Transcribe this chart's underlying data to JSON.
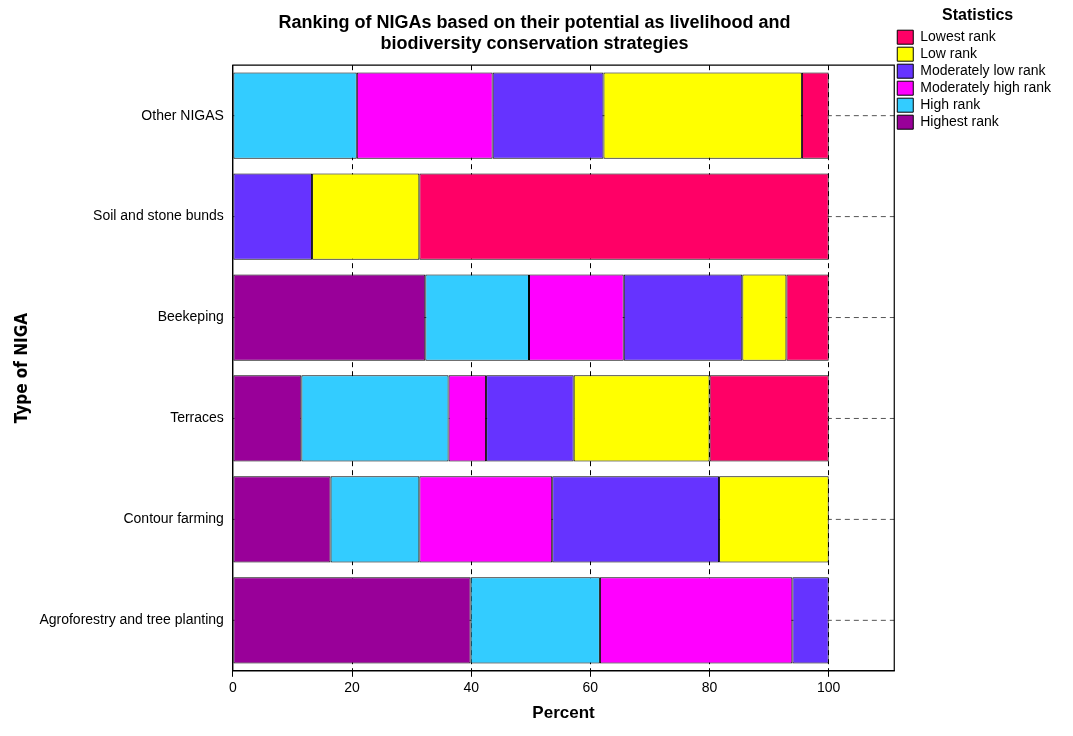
{
  "chart_data": {
    "type": "bar",
    "orientation": "horizontal",
    "stacked": true,
    "title": "Ranking of NIGAs based on their potential as livelihood and biodiversity conservation strategies",
    "xlabel": "Percent",
    "ylabel": "Type of NIGA",
    "legend_title": "Statistics",
    "legend": "top right",
    "grid": true,
    "categories": [
      "Other NIGAS",
      "Soil and stone bunds",
      "Beekeping",
      "Terraces",
      "Contour farming",
      "Agroforestry and tree planting"
    ],
    "xlim": [
      0,
      111
    ],
    "xticks": [
      0,
      20,
      40,
      60,
      80,
      100
    ],
    "series": [
      {
        "name": "Highest rank",
        "color": "#990099",
        "values": [
          null,
          null,
          32.3,
          11.5,
          16.4,
          39.9
        ]
      },
      {
        "name": "High rank",
        "color": "#33ccff",
        "values": [
          20.8,
          null,
          17.4,
          24.7,
          14.9,
          21.7
        ]
      },
      {
        "name": "Moderately high rank",
        "color": "#ff00ff",
        "values": [
          22.8,
          null,
          15.9,
          6.3,
          22.3,
          32.3
        ]
      },
      {
        "name": "Moderately low rank",
        "color": "#6633ff",
        "values": [
          18.6,
          13.3,
          19.9,
          14.7,
          28.0,
          6.1
        ]
      },
      {
        "name": "Low rank",
        "color": "#ffff00",
        "values": [
          33.3,
          18.0,
          7.4,
          22.8,
          18.4,
          null
        ]
      },
      {
        "name": "Lowest rank",
        "color": "#ff0066",
        "values": [
          4.5,
          68.7,
          7.1,
          20.0,
          null,
          null
        ]
      }
    ]
  }
}
